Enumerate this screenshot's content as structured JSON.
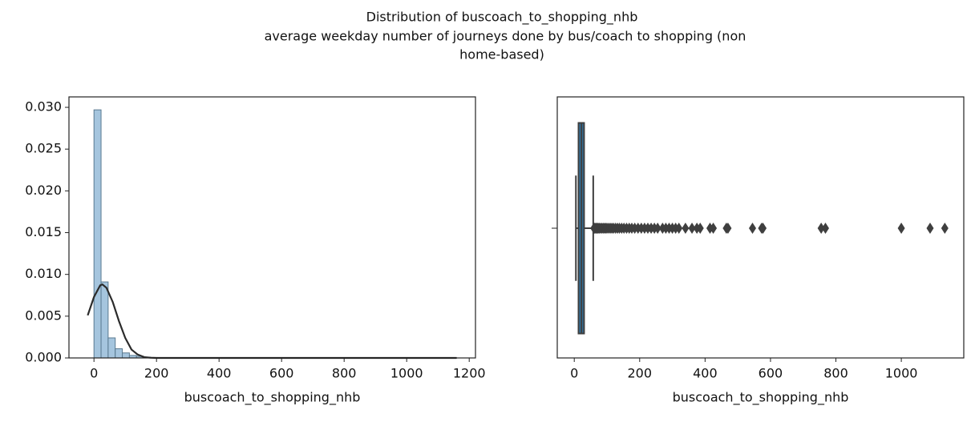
{
  "figure_title": [
    "Distribution of buscoach_to_shopping_nhb",
    "average weekday number of journeys done by bus/coach to shopping (non",
    "home-based)"
  ],
  "chart_data": [
    {
      "type": "histogram",
      "xlabel": "buscoach_to_shopping_nhb",
      "color": "#a5c5de",
      "bins": [
        0,
        22.66,
        45.32,
        67.98,
        90.64,
        113.3,
        135.96,
        158.62,
        181.28,
        203.94,
        226.6,
        249.26,
        271.92,
        294.58,
        317.24,
        339.9,
        362.56,
        385.22,
        407.88,
        430.54,
        453.2,
        475.86,
        498.52,
        521.18,
        543.84,
        566.5,
        589.16,
        611.82,
        634.48,
        657.14,
        679.8,
        702.46,
        725.12,
        747.78,
        770.44,
        793.1,
        815.76,
        838.42,
        861.08,
        883.74,
        906.4,
        929.06,
        951.72,
        974.38,
        997.04,
        1019.7,
        1042.36,
        1065.02,
        1087.68,
        1110.34,
        1133
      ],
      "values": [
        0.0297,
        0.0091,
        0.0024,
        0.0011,
        0.0006,
        0.0003,
        0.0002,
        0.0001,
        5e-05,
        3e-05,
        2e-05,
        2e-05,
        1e-05,
        1e-05,
        1e-05,
        1e-05,
        1e-05,
        1e-05,
        1e-05,
        1e-05,
        1e-05,
        0,
        0,
        0,
        1e-05,
        1e-05,
        0,
        0,
        0,
        0,
        0,
        0,
        0,
        1e-05,
        1e-05,
        0,
        0,
        0,
        0,
        0,
        0,
        0,
        0,
        0,
        1e-05,
        0,
        0,
        1e-05,
        0,
        1e-05
      ],
      "kde": {
        "color": "#2b2b2b",
        "x": [
          -20,
          0,
          20,
          27,
          40,
          60,
          80,
          100,
          120,
          140,
          160,
          180,
          200,
          1160
        ],
        "values": [
          0.0051,
          0.0073,
          0.0087,
          0.0088,
          0.0084,
          0.0067,
          0.0044,
          0.0024,
          0.001,
          0.0004,
          0.0001,
          3e-05,
          0,
          0
        ]
      },
      "xlim": [
        -80,
        1220
      ],
      "xticks": [
        0,
        200,
        400,
        600,
        800,
        1000,
        1200
      ],
      "ylim": [
        0,
        0.03125
      ],
      "yticks": [
        {
          "value": 0,
          "label": "0.000"
        },
        {
          "value": 0.005,
          "label": "0.005"
        },
        {
          "value": 0.01,
          "label": "0.010"
        },
        {
          "value": 0.015,
          "label": "0.015"
        },
        {
          "value": 0.02,
          "label": "0.020"
        },
        {
          "value": 0.025,
          "label": "0.025"
        },
        {
          "value": 0.03,
          "label": "0.030"
        }
      ]
    },
    {
      "type": "box",
      "xlabel": "buscoach_to_shopping_nhb",
      "color": "#3274a1",
      "whislo": 5,
      "q1": 13,
      "median": 22,
      "q3": 30,
      "whishi": 58,
      "outliers": [
        60,
        62,
        65,
        68,
        70,
        73,
        76,
        80,
        84,
        88,
        92,
        96,
        100,
        105,
        110,
        115,
        120,
        126,
        132,
        138,
        145,
        152,
        160,
        168,
        176,
        185,
        195,
        205,
        215,
        225,
        235,
        245,
        255,
        270,
        280,
        290,
        300,
        310,
        320,
        340,
        360,
        375,
        385,
        415,
        425,
        465,
        470,
        545,
        573,
        577,
        755,
        768,
        1000,
        1088,
        1133
      ],
      "xlim": [
        -52,
        1191
      ],
      "xticks": [
        0,
        200,
        400,
        600,
        800,
        1000
      ]
    }
  ]
}
